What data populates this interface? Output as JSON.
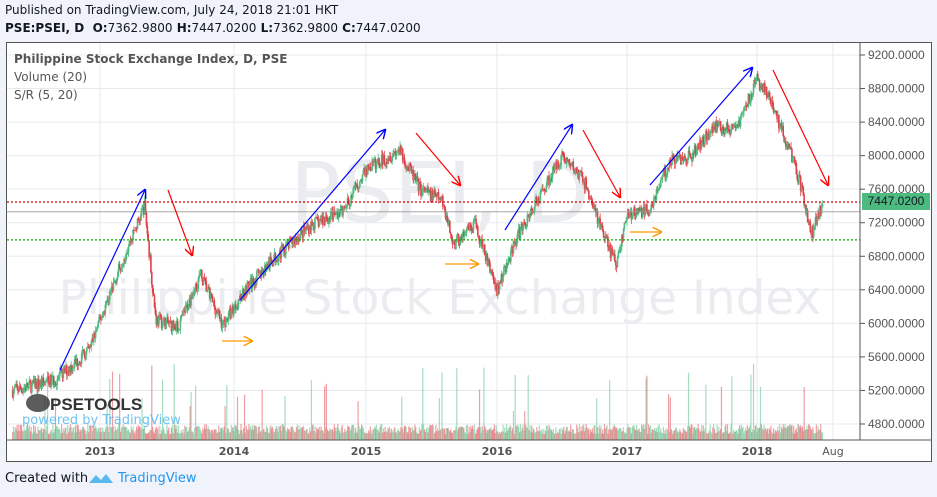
{
  "header": {
    "published": "Published on TradingView.com, July 24, 2018 21:01 HKT",
    "symbol": "PSE:PSEI, D",
    "ohlc": [
      {
        "label": "O:",
        "value": "7362.9800"
      },
      {
        "label": "H:",
        "value": "7447.0200"
      },
      {
        "label": "L:",
        "value": "7362.9800"
      },
      {
        "label": "C:",
        "value": "7447.0200"
      }
    ]
  },
  "legend": {
    "main": "Philippine Stock Exchange Index, D, PSE",
    "volume": "Volume (20)",
    "sr": "S/R (5, 20)"
  },
  "watermark": {
    "symbol": "PSEI, D",
    "name": "Philippine Stock Exchange Index"
  },
  "logo": {
    "brand": "PSETOOLS",
    "powered": "powered by TradingView"
  },
  "footer": {
    "created_with": "Created with",
    "brand": "TradingView"
  },
  "colors": {
    "up": "#4dbb7f",
    "down": "#e0404a",
    "resistance": "#d00000",
    "support": "#00b000",
    "trend_up": "#0000ff",
    "trend_down": "#ff0000",
    "base": "#ff9900",
    "last_price_tag": "#4dbb7f"
  },
  "last_price": "7447.0200",
  "chart_data": {
    "type": "candlestick",
    "title": "Philippine Stock Exchange Index, D, PSE",
    "y_ticks": [
      "9200.0000",
      "8800.0000",
      "8400.0000",
      "8000.0000",
      "7600.0000",
      "7200.0000",
      "6800.0000",
      "6400.0000",
      "6000.0000",
      "5600.0000",
      "5200.0000",
      "4800.0000"
    ],
    "x_ticks": [
      "2013",
      "2014",
      "2015",
      "2016",
      "2017",
      "2018",
      "Aug"
    ],
    "ylim": [
      4650,
      9450
    ],
    "grid": true,
    "support_resistance": {
      "resistance": 7447.02,
      "support": 6995,
      "mid": 7330
    },
    "approx_monthly_close": {
      "dates": [
        "2012-05",
        "2012-09",
        "2012-12",
        "2013-03",
        "2013-05",
        "2013-06",
        "2013-08",
        "2013-10",
        "2013-12",
        "2014-02",
        "2014-05",
        "2014-08",
        "2014-11",
        "2015-01",
        "2015-04",
        "2015-06",
        "2015-08",
        "2015-09",
        "2015-11",
        "2016-01",
        "2016-03",
        "2016-05",
        "2016-07",
        "2016-09",
        "2016-11",
        "2016-12",
        "2017-01",
        "2017-03",
        "2017-05",
        "2017-07",
        "2017-09",
        "2017-11",
        "2018-01",
        "2018-02",
        "2018-04",
        "2018-05",
        "2018-06",
        "2018-07"
      ],
      "values": [
        5200,
        5330,
        5680,
        6750,
        7400,
        6050,
        5950,
        6580,
        5980,
        6400,
        6820,
        7170,
        7350,
        7830,
        8070,
        7590,
        7470,
        6940,
        7170,
        6400,
        7060,
        7530,
        8000,
        7710,
        7000,
        6700,
        7290,
        7350,
        7940,
        8000,
        8360,
        8300,
        8900,
        8720,
        8070,
        7650,
        7060,
        7447
      ]
    },
    "volume": {
      "name": "Volume (20)"
    }
  }
}
